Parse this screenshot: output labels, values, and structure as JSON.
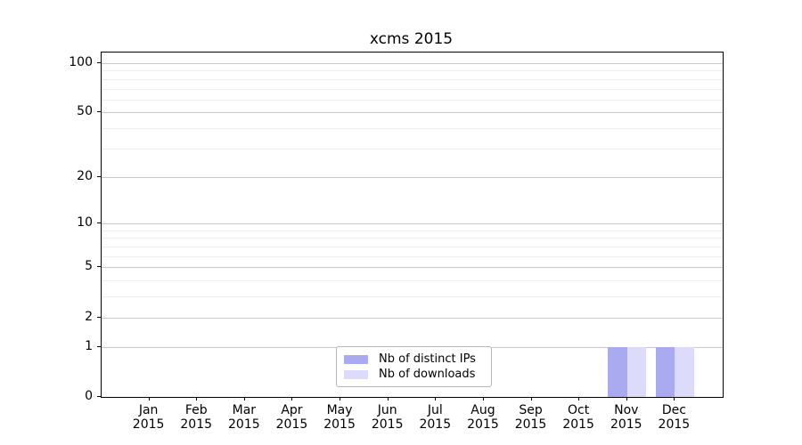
{
  "chart_data": {
    "type": "bar",
    "title": "xcms 2015",
    "categories": [
      "Jan 2015",
      "Feb 2015",
      "Mar 2015",
      "Apr 2015",
      "May 2015",
      "Jun 2015",
      "Jul 2015",
      "Aug 2015",
      "Sep 2015",
      "Oct 2015",
      "Nov 2015",
      "Dec 2015"
    ],
    "series": [
      {
        "name": "Nb of distinct IPs",
        "color": "#aaaaf0",
        "values": [
          0,
          0,
          0,
          0,
          0,
          0,
          0,
          0,
          0,
          0,
          1,
          1
        ]
      },
      {
        "name": "Nb of downloads",
        "color": "#dcdcfa",
        "values": [
          0,
          0,
          0,
          0,
          0,
          0,
          0,
          0,
          0,
          0,
          1,
          1
        ]
      }
    ],
    "xlabel": "",
    "ylabel": "",
    "y_scale": "log10(1+v)",
    "ylim": [
      0,
      116
    ],
    "y_major_ticks": [
      0,
      1,
      2,
      5,
      10,
      20,
      50,
      100
    ],
    "y_minor_gridlines": [
      3,
      4,
      6,
      7,
      8,
      9,
      30,
      40,
      60,
      70,
      80,
      90
    ],
    "grid": "horizontal",
    "legend_position": "inside-bottom-center",
    "bar_width_fraction": 0.4
  },
  "colors": {
    "background": "#ffffff",
    "axis": "#000000",
    "text": "#000000",
    "major_grid": "#c9c9c9",
    "minor_grid": "#ededed",
    "legend_border": "#b7b7b7",
    "bar_distinct_ips": "#aaaaf0",
    "bar_downloads": "#dcdcfa"
  }
}
